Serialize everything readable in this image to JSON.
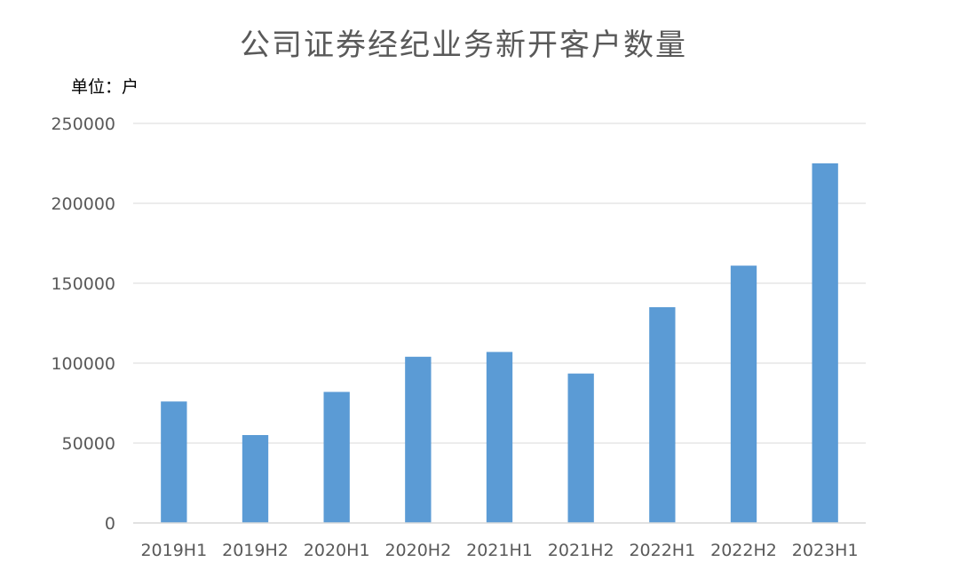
{
  "chart_data": {
    "type": "bar",
    "title": "公司证券经纪业务新开客户数量",
    "unit_label": "单位：户",
    "xlabel": "",
    "ylabel": "",
    "categories": [
      "2019H1",
      "2019H2",
      "2020H1",
      "2020H2",
      "2021H1",
      "2021H2",
      "2022H1",
      "2022H2",
      "2023H1"
    ],
    "values": [
      76000,
      55000,
      82000,
      104000,
      107000,
      93500,
      135000,
      161000,
      225000
    ],
    "ylim": [
      0,
      250000
    ],
    "yticks": [
      0,
      50000,
      100000,
      150000,
      200000,
      250000
    ],
    "ytick_labels": [
      "0",
      "50000",
      "100000",
      "150000",
      "200000",
      "250000"
    ],
    "grid": true,
    "legend": "none",
    "bar_color": "#5b9bd5"
  }
}
